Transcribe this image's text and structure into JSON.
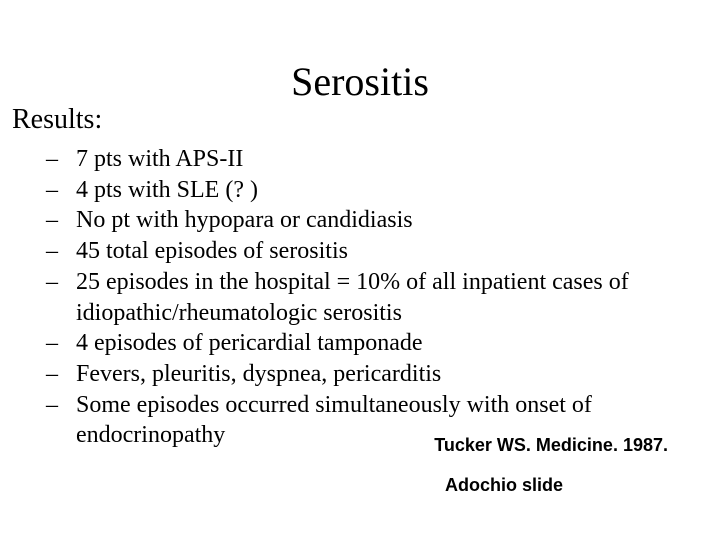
{
  "title": "Serositis",
  "results_label": "Results:",
  "bullets": [
    "7 pts with APS-II",
    "4 pts with SLE (? )",
    "No pt with hypopara or candidiasis",
    "45 total episodes of serositis",
    "25 episodes in the hospital = 10% of all inpatient cases of idiopathic/rheumatologic serositis",
    "4 episodes of pericardial tamponade",
    "Fevers, pleuritis, dyspnea, pericarditis",
    "Some episodes occurred simultaneously with onset of endocrinopathy"
  ],
  "bullet_marker": "–",
  "citation": "Tucker WS. Medicine. 1987.",
  "credit": "Adochio slide",
  "styling": {
    "background_color": "#ffffff",
    "text_color": "#000000",
    "title_fontsize": 40,
    "results_fontsize": 28,
    "bullet_fontsize": 24,
    "citation_fontsize": 18,
    "serif_font": "Times New Roman",
    "sans_font": "Arial"
  }
}
